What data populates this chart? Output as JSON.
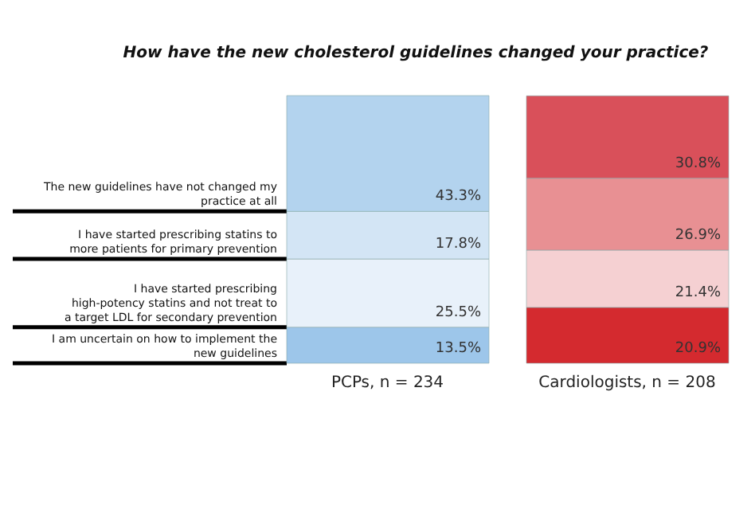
{
  "chart_data": {
    "type": "bar",
    "stacked": true,
    "title": "How have the new cholesterol guidelines changed your practice?",
    "categories": [
      "PCPs, n = 234",
      "Cardiologists, n = 208"
    ],
    "series": [
      {
        "name": "I am uncertain on how to implement the new guidelines",
        "colors": [
          "#9dc6ea",
          "#d42a2f"
        ],
        "values": [
          13.5,
          20.9
        ],
        "value_labels": [
          "13.5%",
          "20.9%"
        ]
      },
      {
        "name": "I have started prescribing high-potency statins and not treat to a target LDL for secondary prevention",
        "colors": [
          "#e8f1fa",
          "#f5d0d2"
        ],
        "values": [
          25.5,
          21.4
        ],
        "value_labels": [
          "25.5%",
          "21.4%"
        ]
      },
      {
        "name": "I have started prescribing statins to more patients for primary prevention",
        "colors": [
          "#d3e5f5",
          "#e89093"
        ],
        "values": [
          17.8,
          26.9
        ],
        "value_labels": [
          "17.8%",
          "26.9%"
        ]
      },
      {
        "name": "The new guidelines have not changed my practice at all",
        "colors": [
          "#b3d3ee",
          "#d9505a"
        ],
        "values": [
          43.3,
          30.8
        ],
        "value_labels": [
          "43.3%",
          "30.8%"
        ]
      }
    ],
    "grid": false,
    "legend": false
  }
}
